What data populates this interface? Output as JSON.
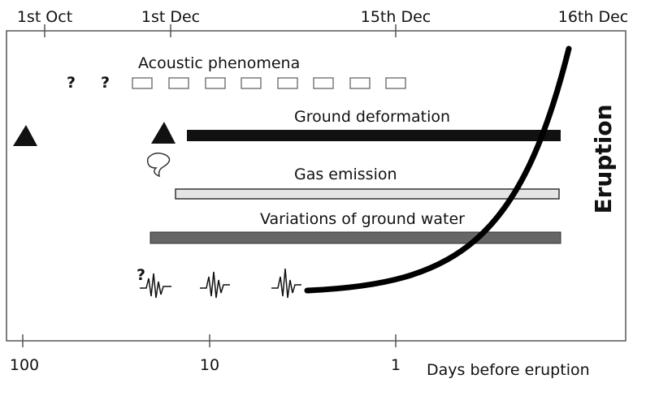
{
  "top_axis": {
    "labels": [
      "1st Oct",
      "1st Dec",
      "15th Dec",
      "16th Dec"
    ]
  },
  "bottom_axis": {
    "labels": [
      "100",
      "10",
      "1"
    ],
    "title": "Days before eruption"
  },
  "phenomena": [
    {
      "label": "Acoustic phenomena"
    },
    {
      "label": "Ground deformation"
    },
    {
      "label": "Gas emission"
    },
    {
      "label": "Variations of  ground water"
    }
  ],
  "question_marks": [
    "?",
    "?",
    "?"
  ],
  "eruption_label": "Eruption"
}
